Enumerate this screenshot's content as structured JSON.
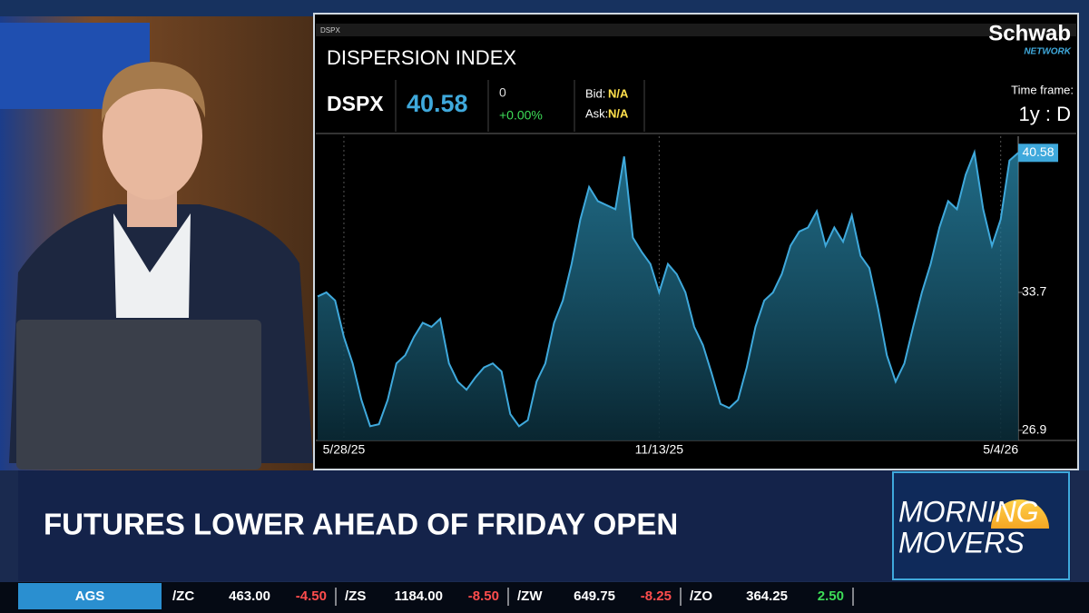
{
  "network": {
    "brand": "Schwab",
    "sub": "NETWORK"
  },
  "window": {
    "symbol": "DSPX",
    "name": "DISPERSION INDEX",
    "change": "0",
    "change_pct": "+0.00%",
    "bid_label": "Bid:",
    "bid": "N/A",
    "ask_label": "Ask:",
    "ask": "N/A",
    "timeframe_label": "Time frame:",
    "timeframe": "1y : D"
  },
  "chart_data": {
    "type": "area",
    "color": "#3fa9dc",
    "categories": [
      null,
      null,
      null,
      "5/28/25",
      null,
      null,
      null,
      null,
      null,
      null,
      null,
      null,
      null,
      null,
      null,
      null,
      null,
      null,
      null,
      null,
      null,
      null,
      null,
      null,
      null,
      null,
      null,
      null,
      null,
      null,
      null,
      null,
      null,
      null,
      null,
      null,
      null,
      null,
      null,
      "11/13/25",
      null,
      null,
      null,
      null,
      null,
      null,
      null,
      null,
      null,
      null,
      null,
      null,
      null,
      null,
      null,
      null,
      null,
      null,
      null,
      null,
      null,
      null,
      null,
      null,
      null,
      null,
      null,
      null,
      null,
      null,
      null,
      null,
      null,
      null,
      null,
      null,
      null,
      null,
      "5/4/26",
      null,
      null
    ],
    "values": [
      33.5,
      33.7,
      33.3,
      31.5,
      30.2,
      28.4,
      27.1,
      27.2,
      28.4,
      30.2,
      30.6,
      31.5,
      32.2,
      32.0,
      32.4,
      30.2,
      29.3,
      28.9,
      29.5,
      30.0,
      30.2,
      29.8,
      27.7,
      27.1,
      27.4,
      29.3,
      30.2,
      32.2,
      33.3,
      35.1,
      37.3,
      38.9,
      38.2,
      38.0,
      37.8,
      40.4,
      36.4,
      35.7,
      35.1,
      33.7,
      35.1,
      34.6,
      33.7,
      32.0,
      31.1,
      29.7,
      28.2,
      28.0,
      28.4,
      30.0,
      32.0,
      33.3,
      33.7,
      34.6,
      36.0,
      36.7,
      36.9,
      37.7,
      36.0,
      36.9,
      36.2,
      37.5,
      35.5,
      34.9,
      32.9,
      30.6,
      29.3,
      30.2,
      32.0,
      33.7,
      35.1,
      36.9,
      38.2,
      37.8,
      39.5,
      40.6,
      37.8,
      36.0,
      37.3,
      40.2,
      40.58
    ],
    "ylim": [
      26.4,
      41.4
    ],
    "yticks": [
      26.9,
      33.7
    ]
  },
  "banner": {
    "headline": "FUTURES LOWER AHEAD OF FRIDAY OPEN",
    "show_line1": "MORNING",
    "show_line2": "MOVERS"
  },
  "ticker": {
    "label": "AGS",
    "items": [
      {
        "symbol": "/ZC",
        "price": "463.00",
        "change": "-4.50",
        "color": "#ff4d4d"
      },
      {
        "symbol": "/ZS",
        "price": "1184.00",
        "change": "-8.50",
        "color": "#ff4d4d"
      },
      {
        "symbol": "/ZW",
        "price": "649.75",
        "change": "-8.25",
        "color": "#ff4d4d"
      },
      {
        "symbol": "/ZO",
        "price": "364.25",
        "change": "2.50",
        "color": "#3ddc57"
      }
    ]
  }
}
